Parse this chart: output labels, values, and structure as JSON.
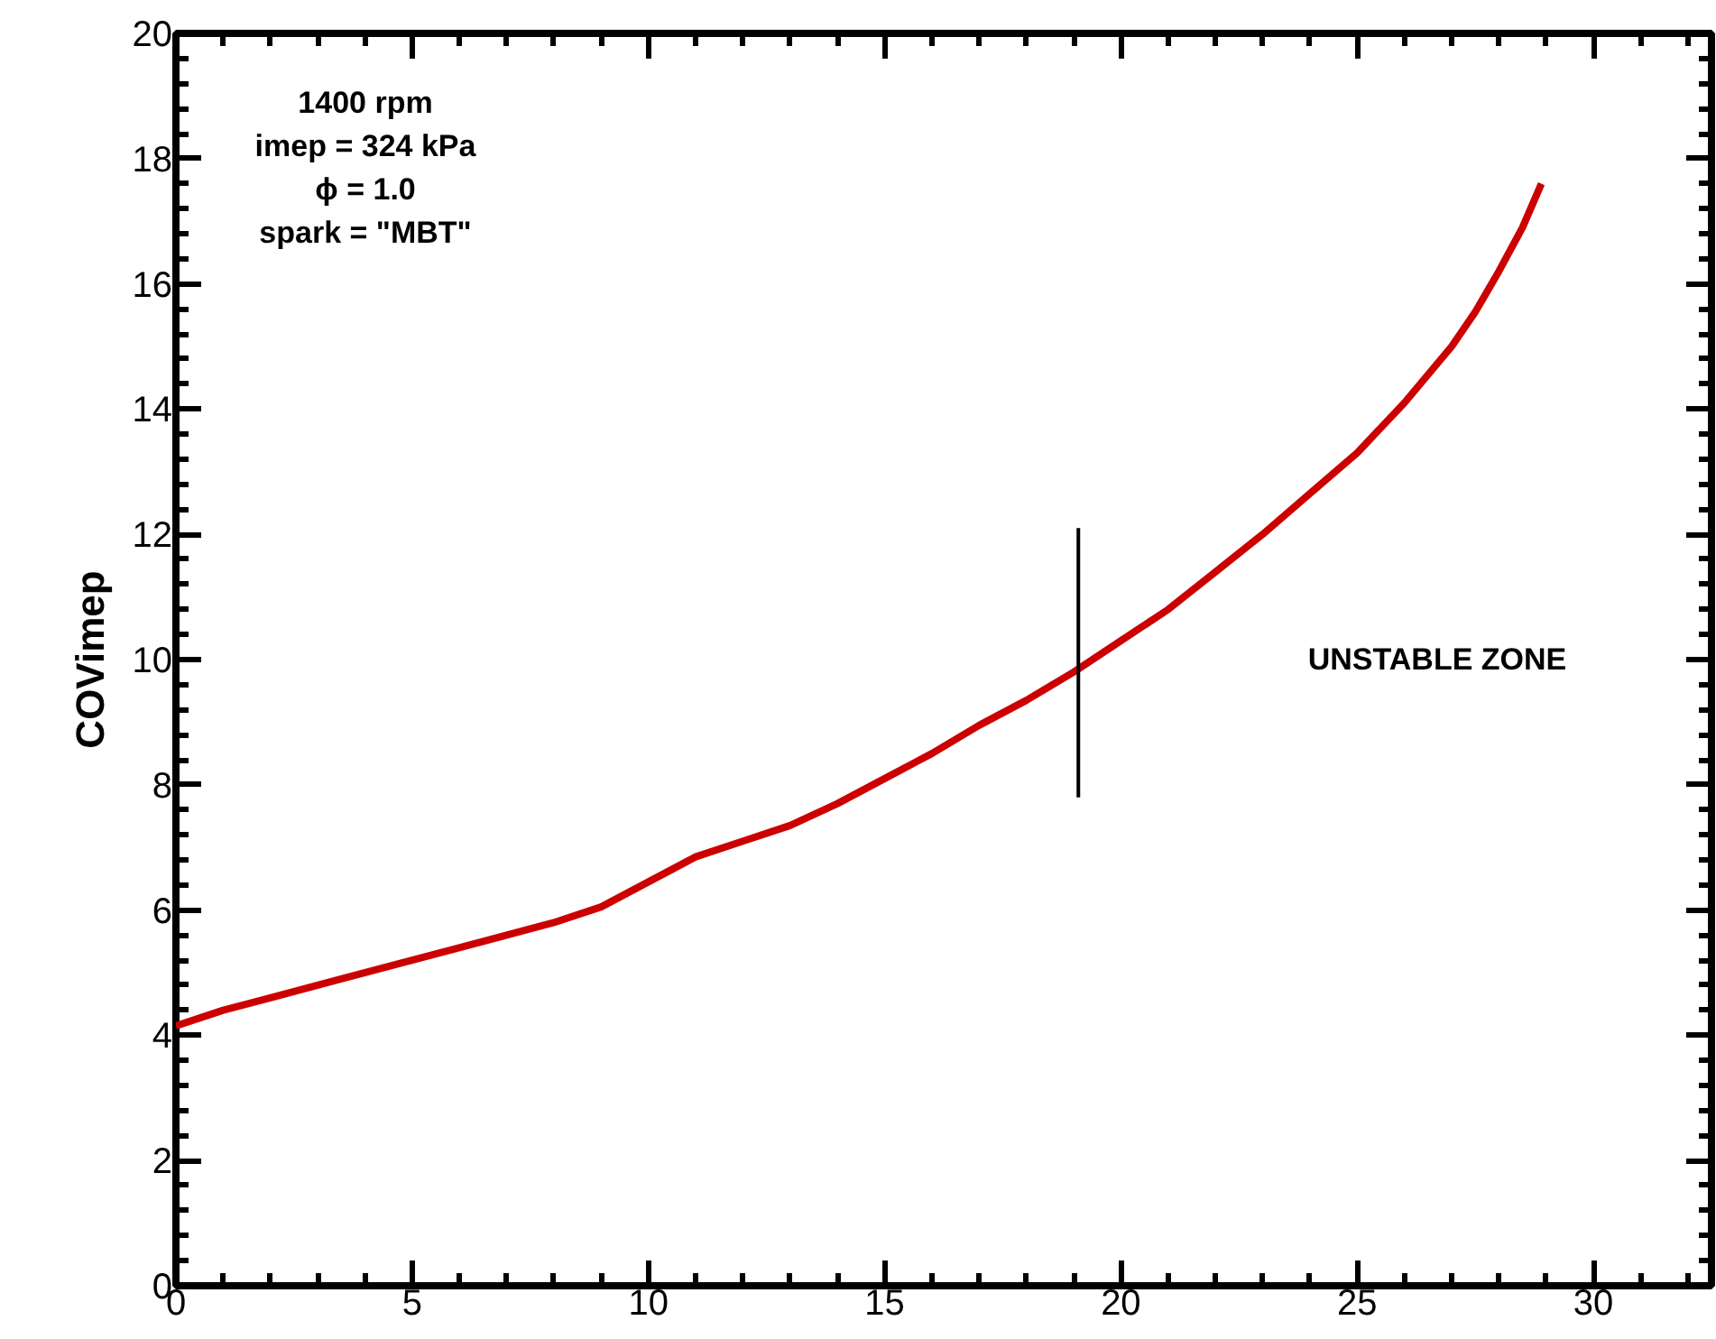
{
  "chart_data": {
    "type": "line",
    "ylabel": "COVimep",
    "x": [
      0,
      1,
      2,
      3.5,
      5,
      6.5,
      8,
      9,
      10,
      11,
      12,
      13,
      14,
      15,
      16,
      17,
      18,
      19,
      20,
      21,
      22,
      23,
      24,
      25,
      26,
      27,
      27.5,
      28,
      28.5,
      28.9
    ],
    "series": [
      {
        "color": "#cc0000",
        "values": [
          4.15,
          4.4,
          4.6,
          4.9,
          5.2,
          5.5,
          5.8,
          6.05,
          6.45,
          6.85,
          7.1,
          7.35,
          7.7,
          8.1,
          8.5,
          8.95,
          9.35,
          9.8,
          10.3,
          10.8,
          11.4,
          12.0,
          12.65,
          13.3,
          14.1,
          15.0,
          15.55,
          16.2,
          16.9,
          17.6
        ]
      }
    ],
    "xlim": [
      0,
      32.5
    ],
    "ylim": [
      0,
      20
    ],
    "xticks": [
      0,
      5,
      10,
      15,
      20,
      25,
      30
    ],
    "yticks": [
      0,
      2,
      4,
      6,
      8,
      10,
      12,
      14,
      16,
      18,
      20
    ],
    "grid": false,
    "marker": "none",
    "line_style": "solid",
    "ref_lines": [
      {
        "axis": "x",
        "value": 19.1,
        "line_style": "solid",
        "color": "#000000"
      }
    ],
    "annotations": [
      "1400 rpm",
      "imep = 324 kPa",
      "ϕ = 1.0",
      "spark = \"MBT\"",
      "UNSTABLE ZONE"
    ]
  }
}
